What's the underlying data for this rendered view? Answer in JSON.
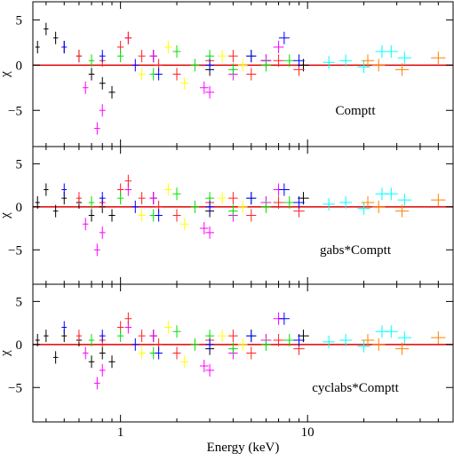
{
  "chart_data": [
    {
      "type": "scatter",
      "xscale": "log",
      "xlim": [
        0.34,
        60
      ],
      "ylim": [
        -9,
        7
      ],
      "xticks": [
        1,
        10
      ],
      "xminor_ticks": [
        0.4,
        0.5,
        0.6,
        0.7,
        0.8,
        0.9,
        2,
        3,
        4,
        5,
        6,
        7,
        8,
        9,
        20,
        30,
        40,
        50
      ],
      "yticks": [
        {
          "value": -5,
          "label": "−5"
        },
        0,
        5
      ],
      "ylabel": "χ",
      "annotation": "Comptt",
      "hline": 0,
      "hline_color": "#e00000",
      "series": [
        {
          "color": "#000000",
          "x": [
            0.36,
            0.4,
            0.45,
            0.5,
            0.6,
            0.7,
            0.8,
            0.9,
            1.5,
            3,
            6,
            9.5
          ],
          "values": [
            2,
            4,
            3,
            2,
            1,
            -1,
            -2,
            -3,
            1,
            -0.5,
            0.5,
            0
          ]
        },
        {
          "color": "#ff00ff",
          "x": [
            0.65,
            0.75,
            0.8,
            1.1,
            1.5,
            2,
            2.8,
            3,
            4,
            5,
            6,
            7
          ],
          "values": [
            -2.5,
            -7,
            -5,
            3,
            1,
            -1,
            -2.5,
            -3,
            -1,
            1,
            0.5,
            2
          ]
        },
        {
          "color": "#ff2020",
          "x": [
            0.6,
            0.8,
            1,
            1.1,
            1.3,
            1.6,
            2,
            3,
            4,
            5,
            7,
            9
          ],
          "values": [
            1,
            0.5,
            2,
            3,
            1,
            0,
            -1,
            0.5,
            1,
            -1,
            0.5,
            -0.5
          ]
        },
        {
          "color": "#00e000",
          "x": [
            0.7,
            1,
            1.5,
            2,
            2.5,
            3,
            4,
            5,
            6,
            8
          ],
          "values": [
            0.5,
            1,
            -1,
            1.5,
            0,
            1,
            -0.5,
            1,
            0,
            0.5
          ]
        },
        {
          "color": "#0000ff",
          "x": [
            0.5,
            0.8,
            1.2,
            1.6,
            3,
            5,
            7.5,
            9
          ],
          "values": [
            2,
            1,
            0,
            -1,
            0,
            1,
            3,
            0.5
          ]
        },
        {
          "color": "#ffff00",
          "x": [
            1.3,
            1.8,
            2.2,
            3.5,
            4.5
          ],
          "values": [
            -1,
            2,
            -2,
            1,
            0
          ]
        },
        {
          "color": "#00ffff",
          "x": [
            13,
            16,
            20,
            25,
            28,
            33
          ],
          "values": [
            0.3,
            0.5,
            -0.2,
            1.5,
            1.5,
            0.8
          ]
        },
        {
          "color": "#ff8000",
          "x": [
            21,
            24,
            32,
            50
          ],
          "values": [
            0.5,
            0,
            -0.5,
            0.8
          ]
        }
      ]
    },
    {
      "type": "scatter",
      "xscale": "log",
      "xlim": [
        0.34,
        60
      ],
      "ylim": [
        -9,
        7
      ],
      "xticks": [
        1,
        10
      ],
      "xminor_ticks": [
        0.4,
        0.5,
        0.6,
        0.7,
        0.8,
        0.9,
        2,
        3,
        4,
        5,
        6,
        7,
        8,
        9,
        20,
        30,
        40,
        50
      ],
      "yticks": [
        {
          "value": -5,
          "label": "−5"
        },
        0,
        5
      ],
      "ylabel": "χ",
      "annotation": "gabs*Comptt",
      "hline": 0,
      "hline_color": "#e00000",
      "series": [
        {
          "color": "#000000",
          "x": [
            0.36,
            0.4,
            0.45,
            0.5,
            0.6,
            0.7,
            0.8,
            0.9,
            1.5,
            3,
            6,
            9.5
          ],
          "values": [
            0.5,
            2,
            -0.5,
            1,
            0.5,
            -1,
            0,
            -1,
            1,
            -0.5,
            0.5,
            1
          ]
        },
        {
          "color": "#ff00ff",
          "x": [
            0.65,
            0.75,
            0.8,
            1.1,
            1.5,
            2,
            2.8,
            3,
            4,
            5,
            6,
            7
          ],
          "values": [
            -2,
            -5,
            -3,
            2,
            1,
            -1,
            -2.5,
            -3,
            -1,
            1,
            0.5,
            2
          ]
        },
        {
          "color": "#ff2020",
          "x": [
            0.6,
            0.8,
            1,
            1.1,
            1.3,
            1.6,
            2,
            3,
            4,
            5,
            7,
            9
          ],
          "values": [
            1,
            0.5,
            2,
            3,
            1,
            0,
            -1,
            0.5,
            1,
            -1,
            0.5,
            -0.5
          ]
        },
        {
          "color": "#00e000",
          "x": [
            0.7,
            1,
            1.5,
            2,
            2.5,
            3,
            4,
            5,
            6,
            8
          ],
          "values": [
            0.5,
            1,
            -1,
            1.5,
            0,
            1,
            -0.5,
            1,
            0,
            0.5
          ]
        },
        {
          "color": "#0000ff",
          "x": [
            0.5,
            0.8,
            1.2,
            1.6,
            3,
            5,
            7.5,
            9
          ],
          "values": [
            2,
            1,
            0,
            -1,
            0,
            1,
            2,
            0.5
          ]
        },
        {
          "color": "#ffff00",
          "x": [
            1.3,
            1.8,
            2.2,
            3.5,
            4.5
          ],
          "values": [
            -1,
            2,
            -2,
            1,
            0
          ]
        },
        {
          "color": "#00ffff",
          "x": [
            13,
            16,
            20,
            25,
            28,
            33
          ],
          "values": [
            0.3,
            0.5,
            -0.2,
            1.5,
            1.5,
            0.8
          ]
        },
        {
          "color": "#ff8000",
          "x": [
            21,
            24,
            32,
            50
          ],
          "values": [
            0.5,
            0,
            -0.5,
            0.8
          ]
        }
      ]
    },
    {
      "type": "scatter",
      "xscale": "log",
      "xlim": [
        0.34,
        60
      ],
      "ylim": [
        -9,
        7
      ],
      "xticks": [
        1,
        10
      ],
      "xminor_ticks": [
        0.4,
        0.5,
        0.6,
        0.7,
        0.8,
        0.9,
        2,
        3,
        4,
        5,
        6,
        7,
        8,
        9,
        20,
        30,
        40,
        50
      ],
      "yticks": [
        {
          "value": -5,
          "label": "−5"
        },
        0,
        5
      ],
      "ylabel": "χ",
      "xlabel": "Energy (keV)",
      "annotation": "cyclabs*Comptt",
      "hline": 0,
      "hline_color": "#e00000",
      "series": [
        {
          "color": "#000000",
          "x": [
            0.36,
            0.4,
            0.45,
            0.5,
            0.6,
            0.7,
            0.8,
            0.9,
            1.5,
            3,
            6,
            9.5
          ],
          "values": [
            0.5,
            1,
            -1.5,
            1,
            0.5,
            -2,
            -1,
            -2,
            1,
            -0.5,
            0.5,
            1
          ]
        },
        {
          "color": "#ff00ff",
          "x": [
            0.65,
            0.75,
            0.8,
            1.1,
            1.5,
            2,
            2.8,
            3,
            4,
            5,
            6,
            7
          ],
          "values": [
            -1,
            -4.5,
            -3,
            2,
            1,
            -1,
            -2.5,
            -3,
            -1,
            1,
            0.5,
            3
          ]
        },
        {
          "color": "#ff2020",
          "x": [
            0.6,
            0.8,
            1,
            1.1,
            1.3,
            1.6,
            2,
            3,
            4,
            5,
            7,
            9
          ],
          "values": [
            1,
            0.5,
            2,
            3,
            1,
            0,
            -1,
            0.5,
            1,
            -1,
            0.5,
            -0.5
          ]
        },
        {
          "color": "#00e000",
          "x": [
            0.7,
            1,
            1.5,
            2,
            2.5,
            3,
            4,
            5,
            6,
            8
          ],
          "values": [
            0.5,
            1,
            -1,
            1.5,
            0,
            1,
            -0.5,
            1,
            0,
            0.5
          ]
        },
        {
          "color": "#0000ff",
          "x": [
            0.5,
            0.8,
            1.2,
            1.6,
            3,
            5,
            7.5,
            9
          ],
          "values": [
            2,
            1,
            0,
            -1,
            0,
            1,
            3,
            0.5
          ]
        },
        {
          "color": "#ffff00",
          "x": [
            1.3,
            1.8,
            2.2,
            3.5,
            4.5
          ],
          "values": [
            -1,
            2,
            -2,
            1,
            0
          ]
        },
        {
          "color": "#00ffff",
          "x": [
            13,
            16,
            20,
            25,
            28,
            33
          ],
          "values": [
            0.3,
            0.5,
            -0.2,
            1.5,
            1.5,
            0.8
          ]
        },
        {
          "color": "#ff8000",
          "x": [
            21,
            24,
            32,
            50
          ],
          "values": [
            0.5,
            0,
            -0.5,
            0.8
          ]
        }
      ]
    }
  ]
}
